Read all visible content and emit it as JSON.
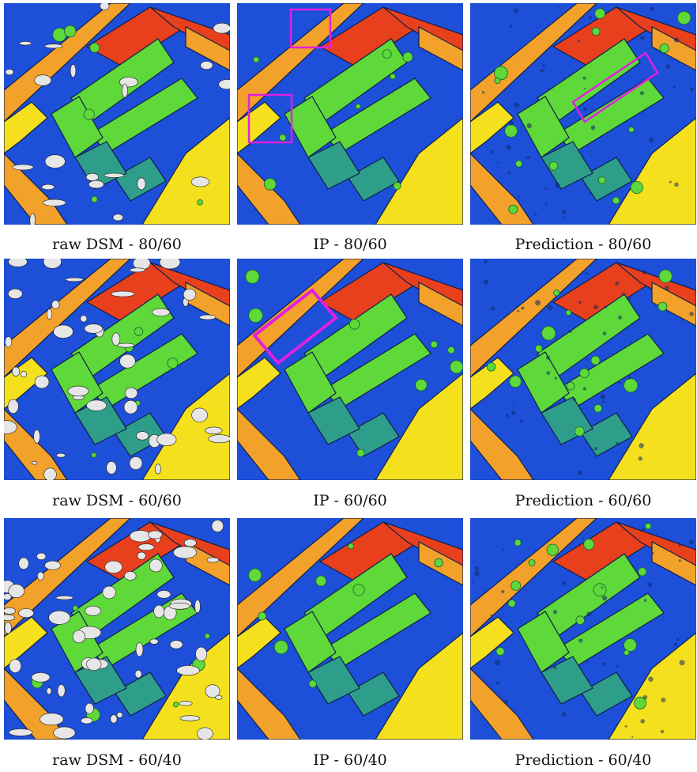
{
  "colors": {
    "ground": "#1d4fd8",
    "red_roof": "#e8401c",
    "orange_roof": "#f2a12a",
    "yellow_roof": "#f4e01c",
    "green_roof": "#5fd83a",
    "teal_roof": "#2e9e8a",
    "missing": "#e6e6e6",
    "highlight_box": "#e020e0"
  },
  "panels": [
    {
      "kind": "raw",
      "caption": "raw DSM - 80/60"
    },
    {
      "kind": "ip",
      "caption": "IP - 80/60"
    },
    {
      "kind": "pred",
      "caption": "Prediction - 80/60"
    },
    {
      "kind": "raw",
      "caption": "raw DSM - 60/60"
    },
    {
      "kind": "ip",
      "caption": "IP - 60/60"
    },
    {
      "kind": "pred",
      "caption": "Prediction - 60/60"
    },
    {
      "kind": "raw",
      "caption": "raw DSM - 60/40"
    },
    {
      "kind": "ip",
      "caption": "IP - 60/40"
    },
    {
      "kind": "pred",
      "caption": "Prediction - 60/40"
    }
  ]
}
